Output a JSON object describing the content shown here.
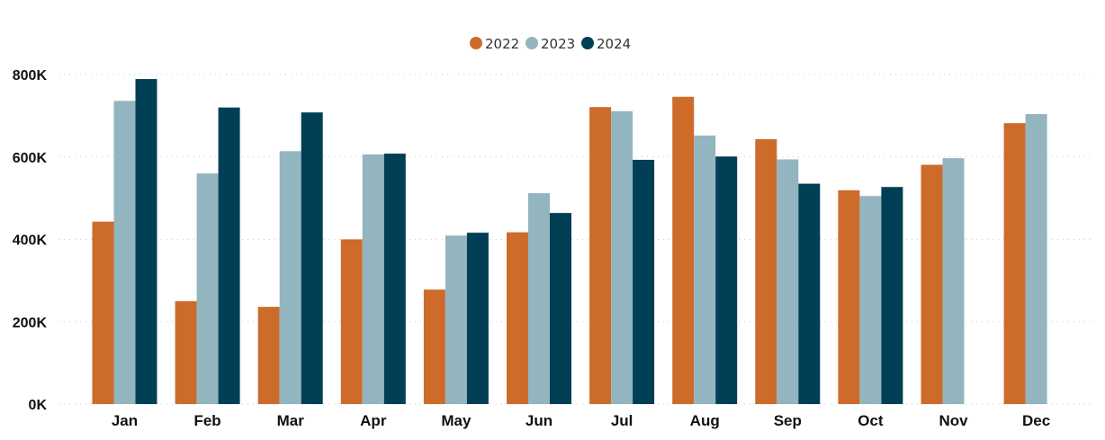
{
  "chart_data": {
    "type": "bar",
    "title": "",
    "xlabel": "",
    "ylabel": "",
    "categories": [
      "Jan",
      "Feb",
      "Mar",
      "Apr",
      "May",
      "Jun",
      "Jul",
      "Aug",
      "Sep",
      "Oct",
      "Nov",
      "Dec"
    ],
    "series": [
      {
        "name": "2022",
        "color": "#CD6B2A",
        "values": [
          443000,
          250000,
          236000,
          400000,
          278000,
          417000,
          721000,
          746000,
          643000,
          519000,
          581000,
          682000
        ]
      },
      {
        "name": "2023",
        "color": "#93B5BF",
        "values": [
          736000,
          560000,
          614000,
          606000,
          409000,
          512000,
          711000,
          652000,
          594000,
          505000,
          597000,
          704000
        ]
      },
      {
        "name": "2024",
        "color": "#003F56",
        "values": [
          789000,
          720000,
          708000,
          608000,
          416000,
          464000,
          593000,
          601000,
          535000,
          527000,
          null,
          null
        ]
      }
    ],
    "ylim": [
      0,
      800000
    ],
    "yticks": [
      0,
      200000,
      400000,
      600000,
      800000
    ],
    "ytick_labels": [
      "0K",
      "200K",
      "400K",
      "600K",
      "800K"
    ],
    "grid": true,
    "legend": "top-center"
  }
}
